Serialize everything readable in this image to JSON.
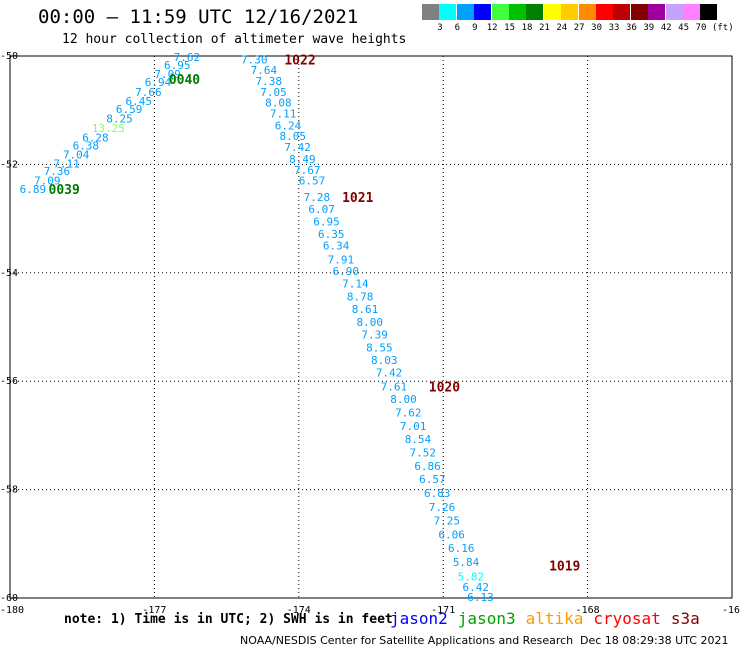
{
  "title": "00:00 – 11:59 UTC 12/16/2021",
  "subtitle": "12 hour collection of altimeter wave heights",
  "legend": {
    "unit": "(ft)",
    "items": [
      {
        "label": "3",
        "color": "#808080"
      },
      {
        "label": "6",
        "color": "#00ffff"
      },
      {
        "label": "9",
        "color": "#00a0ff"
      },
      {
        "label": "12",
        "color": "#0000ff"
      },
      {
        "label": "15",
        "color": "#40ff40"
      },
      {
        "label": "18",
        "color": "#00c000"
      },
      {
        "label": "21",
        "color": "#008000"
      },
      {
        "label": "24",
        "color": "#ffff00"
      },
      {
        "label": "27",
        "color": "#ffcc00"
      },
      {
        "label": "30",
        "color": "#ff8c00"
      },
      {
        "label": "33",
        "color": "#ff0000"
      },
      {
        "label": "36",
        "color": "#c00000"
      },
      {
        "label": "39",
        "color": "#800000"
      },
      {
        "label": "42",
        "color": "#a000a0"
      },
      {
        "label": "45",
        "color": "#c8a0ff"
      },
      {
        "label": "70",
        "color": "#ff80ff"
      },
      {
        "label": "",
        "color": "#000000"
      }
    ]
  },
  "map": {
    "lon_range": [
      -180,
      -165
    ],
    "lat_range": [
      -60,
      -50
    ],
    "lat_ticks": [
      "-50",
      "-52",
      "-54",
      "-56",
      "-58",
      "-60"
    ],
    "lon_ticks": [
      "-180",
      "-177",
      "-174",
      "-171",
      "-168",
      "-16"
    ],
    "grid": true
  },
  "passes": [
    {
      "label": "0039",
      "color": "#007800",
      "lon": -179.2,
      "lat": -52.45
    },
    {
      "label": "0040",
      "color": "#007800",
      "lon": -176.7,
      "lat": -50.42
    },
    {
      "label": "1022",
      "color": "#800000",
      "lon": -174.3,
      "lat": -50.06
    },
    {
      "label": "1021",
      "color": "#800000",
      "lon": -173.1,
      "lat": -52.6
    },
    {
      "label": "1020",
      "color": "#800000",
      "lon": -171.3,
      "lat": -56.1
    },
    {
      "label": "1019",
      "color": "#800000",
      "lon": -168.8,
      "lat": -59.4
    }
  ],
  "track_0039_0040": [
    {
      "v": "6.89",
      "lon": -179.8,
      "lat": -52.45,
      "color": "#00a0ff"
    },
    {
      "v": "7.09",
      "lon": -179.5,
      "lat": -52.3,
      "color": "#00a0ff"
    },
    {
      "v": "7.36",
      "lon": -179.3,
      "lat": -52.12,
      "color": "#00a0ff"
    },
    {
      "v": "7.11",
      "lon": -179.1,
      "lat": -51.98,
      "color": "#00a0ff"
    },
    {
      "v": "7.04",
      "lon": -178.9,
      "lat": -51.82,
      "color": "#00a0ff"
    },
    {
      "v": "6.38",
      "lon": -178.7,
      "lat": -51.65,
      "color": "#00a0ff"
    },
    {
      "v": "6.28",
      "lon": -178.5,
      "lat": -51.5,
      "color": "#00a0ff"
    },
    {
      "v": "13.25",
      "lon": -178.3,
      "lat": -51.33,
      "color": "#80ff60"
    },
    {
      "v": "8.25",
      "lon": -178.0,
      "lat": -51.15,
      "color": "#00a0ff"
    },
    {
      "v": "6.59",
      "lon": -177.8,
      "lat": -50.98,
      "color": "#00a0ff"
    },
    {
      "v": "6.45",
      "lon": -177.6,
      "lat": -50.83,
      "color": "#00a0ff"
    },
    {
      "v": "7.66",
      "lon": -177.4,
      "lat": -50.66,
      "color": "#00a0ff"
    },
    {
      "v": "6.94",
      "lon": -177.2,
      "lat": -50.48,
      "color": "#00a0ff"
    },
    {
      "v": "7.09",
      "lon": -177.0,
      "lat": -50.33,
      "color": "#00a0ff"
    },
    {
      "v": "6.95",
      "lon": -176.8,
      "lat": -50.17,
      "color": "#00a0ff"
    },
    {
      "v": "7.62",
      "lon": -176.6,
      "lat": -50.02,
      "color": "#00a0ff"
    }
  ],
  "track_1019_1022": [
    {
      "v": "7.30",
      "lon": -175.2,
      "lat": -50.06,
      "color": "#00a0ff"
    },
    {
      "v": "7.64",
      "lon": -175.0,
      "lat": -50.26,
      "color": "#00a0ff"
    },
    {
      "v": "7.38",
      "lon": -174.9,
      "lat": -50.46,
      "color": "#00a0ff"
    },
    {
      "v": "7.05",
      "lon": -174.8,
      "lat": -50.66,
      "color": "#00a0ff"
    },
    {
      "v": "8.08",
      "lon": -174.7,
      "lat": -50.86,
      "color": "#00a0ff"
    },
    {
      "v": "7.11",
      "lon": -174.6,
      "lat": -51.06,
      "color": "#00a0ff"
    },
    {
      "v": "6.24",
      "lon": -174.5,
      "lat": -51.28,
      "color": "#00a0ff"
    },
    {
      "v": "8.05",
      "lon": -174.4,
      "lat": -51.48,
      "color": "#00a0ff"
    },
    {
      "v": "7.42",
      "lon": -174.3,
      "lat": -51.68,
      "color": "#00a0ff"
    },
    {
      "v": "8.49",
      "lon": -174.2,
      "lat": -51.9,
      "color": "#00a0ff"
    },
    {
      "v": "7.67",
      "lon": -174.1,
      "lat": -52.1,
      "color": "#00a0ff"
    },
    {
      "v": "6.57",
      "lon": -174.0,
      "lat": -52.3,
      "color": "#00a0ff"
    },
    {
      "v": "7.28",
      "lon": -173.9,
      "lat": -52.6,
      "color": "#00a0ff"
    },
    {
      "v": "6.07",
      "lon": -173.8,
      "lat": -52.82,
      "color": "#00a0ff"
    },
    {
      "v": "6.95",
      "lon": -173.7,
      "lat": -53.05,
      "color": "#00a0ff"
    },
    {
      "v": "6.35",
      "lon": -173.6,
      "lat": -53.28,
      "color": "#00a0ff"
    },
    {
      "v": "6.34",
      "lon": -173.5,
      "lat": -53.5,
      "color": "#00a0ff"
    },
    {
      "v": "7.91",
      "lon": -173.4,
      "lat": -53.75,
      "color": "#00a0ff"
    },
    {
      "v": "6.90",
      "lon": -173.3,
      "lat": -53.97,
      "color": "#00a0ff"
    },
    {
      "v": "7.14",
      "lon": -173.1,
      "lat": -54.2,
      "color": "#00a0ff"
    },
    {
      "v": "8.78",
      "lon": -173.0,
      "lat": -54.44,
      "color": "#00a0ff"
    },
    {
      "v": "8.61",
      "lon": -172.9,
      "lat": -54.67,
      "color": "#00a0ff"
    },
    {
      "v": "8.00",
      "lon": -172.8,
      "lat": -54.91,
      "color": "#00a0ff"
    },
    {
      "v": "7.39",
      "lon": -172.7,
      "lat": -55.14,
      "color": "#00a0ff"
    },
    {
      "v": "8.55",
      "lon": -172.6,
      "lat": -55.38,
      "color": "#00a0ff"
    },
    {
      "v": "8.03",
      "lon": -172.5,
      "lat": -55.61,
      "color": "#00a0ff"
    },
    {
      "v": "7.42",
      "lon": -172.4,
      "lat": -55.84,
      "color": "#00a0ff"
    },
    {
      "v": "7.61",
      "lon": -172.3,
      "lat": -56.1,
      "color": "#00a0ff"
    },
    {
      "v": "8.00",
      "lon": -172.1,
      "lat": -56.33,
      "color": "#00a0ff"
    },
    {
      "v": "7.62",
      "lon": -172.0,
      "lat": -56.58,
      "color": "#00a0ff"
    },
    {
      "v": "7.01",
      "lon": -171.9,
      "lat": -56.83,
      "color": "#00a0ff"
    },
    {
      "v": "8.54",
      "lon": -171.8,
      "lat": -57.07,
      "color": "#00a0ff"
    },
    {
      "v": "7.52",
      "lon": -171.7,
      "lat": -57.32,
      "color": "#00a0ff"
    },
    {
      "v": "6.86",
      "lon": -171.6,
      "lat": -57.56,
      "color": "#00a0ff"
    },
    {
      "v": "6.57",
      "lon": -171.5,
      "lat": -57.8,
      "color": "#00a0ff"
    },
    {
      "v": "6.83",
      "lon": -171.4,
      "lat": -58.06,
      "color": "#00a0ff"
    },
    {
      "v": "7.26",
      "lon": -171.3,
      "lat": -58.32,
      "color": "#00a0ff"
    },
    {
      "v": "7.25",
      "lon": -171.2,
      "lat": -58.57,
      "color": "#00a0ff"
    },
    {
      "v": "6.06",
      "lon": -171.1,
      "lat": -58.83,
      "color": "#00a0ff"
    },
    {
      "v": "6.16",
      "lon": -170.9,
      "lat": -59.08,
      "color": "#00a0ff"
    },
    {
      "v": "5.84",
      "lon": -170.8,
      "lat": -59.34,
      "color": "#00a0ff"
    },
    {
      "v": "5.82",
      "lon": -170.7,
      "lat": -59.6,
      "color": "#00ffff"
    },
    {
      "v": "6.42",
      "lon": -170.6,
      "lat": -59.8,
      "color": "#00a0ff"
    },
    {
      "v": "6.13",
      "lon": -170.5,
      "lat": -59.98,
      "color": "#00a0ff"
    }
  ],
  "note": "note: 1) Time is in UTC; 2) SWH is in feet",
  "satellites": [
    {
      "name": "jason2",
      "color": "#0000ff"
    },
    {
      "name": "jason3",
      "color": "#00a000"
    },
    {
      "name": "altika",
      "color": "#ff9900"
    },
    {
      "name": "cryosat",
      "color": "#ff0000"
    },
    {
      "name": "s3a",
      "color": "#800000"
    }
  ],
  "footer": {
    "credit": "NOAA/NESDIS Center for Satellite Applications and Research",
    "timestamp": "Dec 18 08:29:38 UTC 2021"
  }
}
